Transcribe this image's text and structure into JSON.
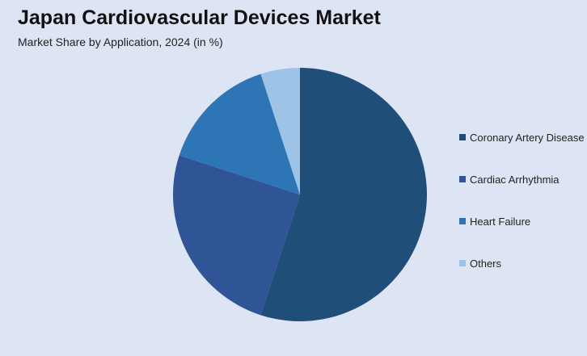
{
  "chart_data": {
    "type": "pie",
    "title": "Japan Cardiovascular Devices Market",
    "subtitle": "Market Share by Application, 2024 (in %)",
    "categories": [
      "Coronary Artery Disease",
      "Cardiac Arrhythmia",
      "Heart Failure",
      "Others"
    ],
    "values": [
      55,
      25,
      15,
      5
    ],
    "colors": [
      "#1f4e79",
      "#2f5597",
      "#2e75b6",
      "#9dc3e6"
    ],
    "legend": "right",
    "start_angle": "12 o'clock",
    "direction": "clockwise"
  }
}
